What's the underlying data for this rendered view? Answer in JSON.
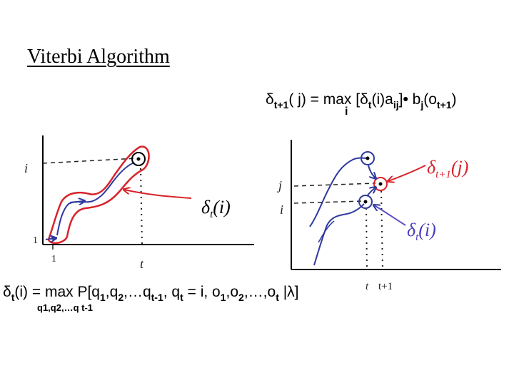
{
  "title": "Viterbi Algorithm",
  "formula_top": {
    "delta": "δ",
    "sub1": "t+1",
    "arg": "( j) = max [",
    "sub2": "t",
    "mid": "(i)a",
    "sub3": "ij",
    "close": "]",
    "bullet": "•",
    "b": " b",
    "sub4": "j",
    "o": "(o",
    "sub5": "t+1",
    "end": ")",
    "max_under": "i"
  },
  "formula_bottom": {
    "delta": "δ",
    "sub1": "t",
    "arg": "(i) = max  P[q",
    "s1": "1",
    "c1": ",q",
    "s2": "2",
    "c2": ",…q",
    "s3": "t-1",
    "c3": ", q",
    "s4": "t",
    "c4": " = i, o",
    "s5": "1",
    "c5": ",o",
    "s6": "2",
    "c6": ",…,o",
    "s7": "t",
    "end": " |λ]",
    "max_under": "q1,q2,…q t-1"
  },
  "left_graph": {
    "y_label_i": "i",
    "y_label_1": "1",
    "x_label_1": "1",
    "x_label_t": "t",
    "delta_label": "δ",
    "delta_sub": "t",
    "delta_arg": "(i)"
  },
  "right_graph": {
    "y_label_j": "j",
    "y_label_i": "i",
    "x_label_t": "t",
    "x_label_t1": "t+1",
    "delta_next_label": "δ",
    "delta_next_sub": "t+1",
    "delta_next_arg": "(j)",
    "delta_label": "δ",
    "delta_sub": "t",
    "delta_arg": "(i)"
  },
  "colors": {
    "red": "#d8232a",
    "blue": "#2e3a9e",
    "axis": "#000000"
  }
}
